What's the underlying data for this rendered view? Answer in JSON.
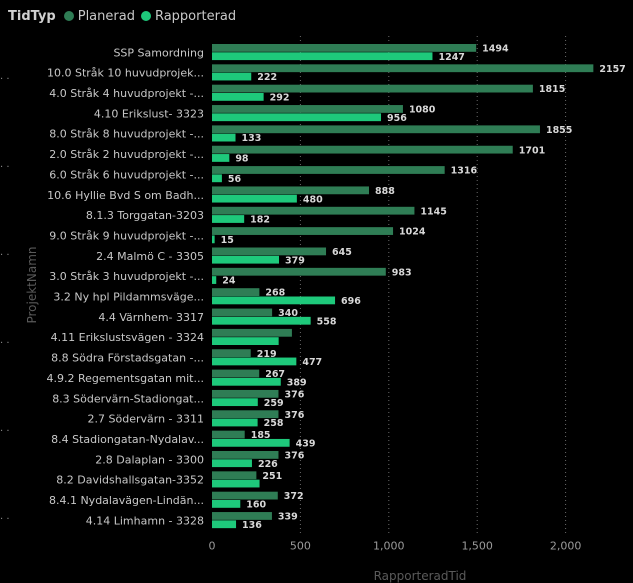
{
  "legend": {
    "title": "TidTyp",
    "items": [
      {
        "label": "Planerad",
        "color": "#2f7d55"
      },
      {
        "label": "Rapporterad",
        "color": "#1ec97b"
      }
    ]
  },
  "chart_data": {
    "type": "bar",
    "orientation": "horizontal",
    "title": "",
    "xlabel": "RapporteradTid",
    "ylabel": "ProjektNamn",
    "xlim": [
      0,
      2300
    ],
    "xticks": [
      "0",
      "500",
      "1,000",
      "1,500",
      "2,000"
    ],
    "xtick_values": [
      0,
      500,
      1000,
      1500,
      2000
    ],
    "grid": "vertical dotted",
    "legend_position": "top-left",
    "categories": [
      "SSP Samordning",
      "10.0 Stråk 10 huvudprojek...",
      "4.0 Stråk 4 huvudprojekt -...",
      "4.10 Erikslust- 3323",
      "8.0 Stråk 8 huvudprojekt -...",
      "2.0 Stråk 2 huvudprojekt -...",
      "6.0 Stråk 6 huvudprojekt -...",
      "10.6 Hyllie Bvd S om Badh...",
      "8.1.3 Torggatan-3203",
      "9.0 Stråk 9 huvudprojekt -...",
      "2.4 Malmö C - 3305",
      "3.0 Stråk 3 huvudprojekt -...",
      "3.2 Ny hpl Pildammsväge...",
      "4.4 Värnhem- 3317",
      "4.11 Erikslustsvägen - 3324",
      "8.8 Södra Förstadsgatan -...",
      "4.9.2 Regementsgatan mit...",
      "8.3 Södervärn-Stadiongat...",
      "2.7 Södervärn - 3311",
      "8.4 Stadiongatan-Nydalav...",
      "2.8 Dalaplan - 3300",
      "8.2 Davidshallsgatan-3352",
      "8.4.1 Nydalavägen-Lindän...",
      "4.14 Limhamn - 3328"
    ],
    "series": [
      {
        "name": "Planerad",
        "color": "#2f7d55",
        "values": [
          1494,
          2157,
          1815,
          1080,
          1855,
          1701,
          1316,
          888,
          1145,
          1024,
          645,
          983,
          268,
          340,
          452,
          219,
          267,
          376,
          376,
          185,
          376,
          251,
          372,
          339
        ]
      },
      {
        "name": "Rapporterad",
        "color": "#1ec97b",
        "values": [
          1247,
          222,
          292,
          956,
          133,
          98,
          56,
          480,
          182,
          15,
          379,
          24,
          696,
          558,
          377,
          477,
          389,
          259,
          258,
          439,
          226,
          269,
          160,
          136
        ]
      }
    ],
    "data_labels": {
      "Planerad": [
        "1494",
        "2157",
        "1815",
        "1080",
        "1855",
        "1701",
        "1316",
        "888",
        "1145",
        "1024",
        "645",
        "983",
        "268",
        "340",
        "",
        "219",
        "267",
        "376",
        "376",
        "185",
        "376",
        "251",
        "372",
        "339"
      ],
      "Rapporterad": [
        "1247",
        "222",
        "292",
        "956",
        "133",
        "98",
        "56",
        "480",
        "182",
        "15",
        "379",
        "24",
        "696",
        "558",
        "",
        "477",
        "389",
        "259",
        "258",
        "439",
        "226",
        "",
        "160",
        "136"
      ]
    }
  }
}
